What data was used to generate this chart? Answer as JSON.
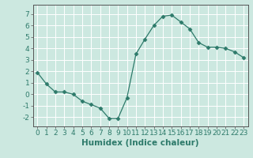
{
  "x": [
    0,
    1,
    2,
    3,
    4,
    5,
    6,
    7,
    8,
    9,
    10,
    11,
    12,
    13,
    14,
    15,
    16,
    17,
    18,
    19,
    20,
    21,
    22,
    23
  ],
  "y": [
    1.9,
    0.9,
    0.2,
    0.2,
    0.0,
    -0.6,
    -0.9,
    -1.2,
    -2.1,
    -2.1,
    -0.3,
    3.5,
    4.8,
    6.0,
    6.8,
    6.9,
    6.3,
    5.7,
    4.5,
    4.1,
    4.1,
    4.0,
    3.7,
    3.2
  ],
  "line_color": "#2d7a6a",
  "marker": "D",
  "marker_size": 2.5,
  "bg_color": "#cce8e0",
  "grid_color": "#ffffff",
  "xlabel": "Humidex (Indice chaleur)",
  "xlim": [
    -0.5,
    23.5
  ],
  "ylim": [
    -2.8,
    7.8
  ],
  "yticks": [
    -2,
    -1,
    0,
    1,
    2,
    3,
    4,
    5,
    6,
    7
  ],
  "xticks": [
    0,
    1,
    2,
    3,
    4,
    5,
    6,
    7,
    8,
    9,
    10,
    11,
    12,
    13,
    14,
    15,
    16,
    17,
    18,
    19,
    20,
    21,
    22,
    23
  ],
  "tick_label_fontsize": 6.5,
  "xlabel_fontsize": 7.5,
  "spine_color": "#555555"
}
